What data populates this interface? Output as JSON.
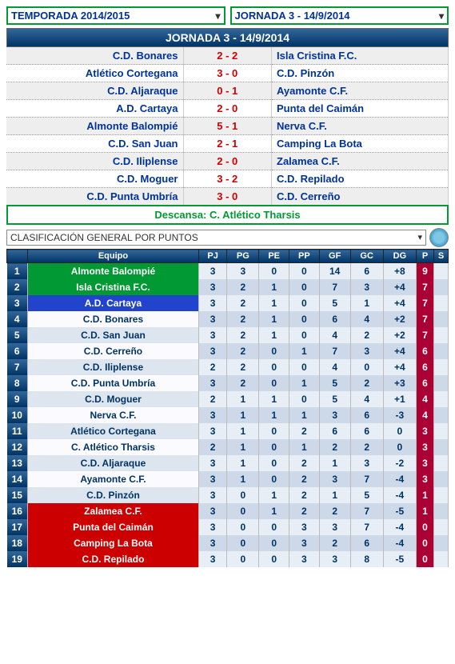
{
  "top": {
    "season_label": "TEMPORADA 2014/2015",
    "round_label": "JORNADA 3 - 14/9/2014"
  },
  "header_title": "JORNADA 3 - 14/9/2014",
  "matches": [
    {
      "home": "C.D. Bonares",
      "score": "2 - 2",
      "away": "Isla Cristina F.C."
    },
    {
      "home": "Atlético Cortegana",
      "score": "3 - 0",
      "away": "C.D. Pinzón"
    },
    {
      "home": "C.D. Aljaraque",
      "score": "0 - 1",
      "away": "Ayamonte C.F."
    },
    {
      "home": "A.D. Cartaya",
      "score": "2 - 0",
      "away": "Punta del Caimán"
    },
    {
      "home": "Almonte Balompié",
      "score": "5 - 1",
      "away": "Nerva C.F."
    },
    {
      "home": "C.D. San Juan",
      "score": "2 - 1",
      "away": "Camping La Bota"
    },
    {
      "home": "C.D. Iliplense",
      "score": "2 - 0",
      "away": "Zalamea C.F."
    },
    {
      "home": "C.D. Moguer",
      "score": "3 - 2",
      "away": "C.D. Repilado"
    },
    {
      "home": "C.D. Punta Umbría",
      "score": "3 - 0",
      "away": "C.D. Cerreño"
    }
  ],
  "rest_label": "Descansa: C. Atlético Tharsis",
  "classif_label": "CLASIFICACIÓN GENERAL POR PUNTOS",
  "cols": {
    "equipo": "Equipo",
    "pj": "PJ",
    "pg": "PG",
    "pe": "PE",
    "pp": "PP",
    "gf": "GF",
    "gc": "GC",
    "dg": "DG",
    "p": "P",
    "s": "S"
  },
  "rows": [
    {
      "pos": 1,
      "team": "Almonte Balompié",
      "pj": 3,
      "pg": 3,
      "pe": 0,
      "pp": 0,
      "gf": 14,
      "gc": 6,
      "dg": "+8",
      "p": 9,
      "color": "009933"
    },
    {
      "pos": 2,
      "team": "Isla Cristina F.C.",
      "pj": 3,
      "pg": 2,
      "pe": 1,
      "pp": 0,
      "gf": 7,
      "gc": 3,
      "dg": "+4",
      "p": 7,
      "color": "009933"
    },
    {
      "pos": 3,
      "team": "A.D. Cartaya",
      "pj": 3,
      "pg": 2,
      "pe": 1,
      "pp": 0,
      "gf": 5,
      "gc": 1,
      "dg": "+4",
      "p": 7,
      "color": "2244cc"
    },
    {
      "pos": 4,
      "team": "C.D. Bonares",
      "pj": 3,
      "pg": 2,
      "pe": 1,
      "pp": 0,
      "gf": 6,
      "gc": 4,
      "dg": "+2",
      "p": 7,
      "color": "fbfbff"
    },
    {
      "pos": 5,
      "team": "C.D. San Juan",
      "pj": 3,
      "pg": 2,
      "pe": 1,
      "pp": 0,
      "gf": 4,
      "gc": 2,
      "dg": "+2",
      "p": 7,
      "color": "dde6ee"
    },
    {
      "pos": 6,
      "team": "C.D. Cerreño",
      "pj": 3,
      "pg": 2,
      "pe": 0,
      "pp": 1,
      "gf": 7,
      "gc": 3,
      "dg": "+4",
      "p": 6,
      "color": "fbfbff"
    },
    {
      "pos": 7,
      "team": "C.D. Iliplense",
      "pj": 2,
      "pg": 2,
      "pe": 0,
      "pp": 0,
      "gf": 4,
      "gc": 0,
      "dg": "+4",
      "p": 6,
      "color": "dde6ee"
    },
    {
      "pos": 8,
      "team": "C.D. Punta Umbría",
      "pj": 3,
      "pg": 2,
      "pe": 0,
      "pp": 1,
      "gf": 5,
      "gc": 2,
      "dg": "+3",
      "p": 6,
      "color": "fbfbff"
    },
    {
      "pos": 9,
      "team": "C.D. Moguer",
      "pj": 2,
      "pg": 1,
      "pe": 1,
      "pp": 0,
      "gf": 5,
      "gc": 4,
      "dg": "+1",
      "p": 4,
      "color": "dde6ee"
    },
    {
      "pos": 10,
      "team": "Nerva C.F.",
      "pj": 3,
      "pg": 1,
      "pe": 1,
      "pp": 1,
      "gf": 3,
      "gc": 6,
      "dg": "-3",
      "p": 4,
      "color": "fbfbff"
    },
    {
      "pos": 11,
      "team": "Atlético Cortegana",
      "pj": 3,
      "pg": 1,
      "pe": 0,
      "pp": 2,
      "gf": 6,
      "gc": 6,
      "dg": "0",
      "p": 3,
      "color": "dde6ee"
    },
    {
      "pos": 12,
      "team": "C. Atlético Tharsis",
      "pj": 2,
      "pg": 1,
      "pe": 0,
      "pp": 1,
      "gf": 2,
      "gc": 2,
      "dg": "0",
      "p": 3,
      "color": "fbfbff"
    },
    {
      "pos": 13,
      "team": "C.D. Aljaraque",
      "pj": 3,
      "pg": 1,
      "pe": 0,
      "pp": 2,
      "gf": 1,
      "gc": 3,
      "dg": "-2",
      "p": 3,
      "color": "dde6ee"
    },
    {
      "pos": 14,
      "team": "Ayamonte C.F.",
      "pj": 3,
      "pg": 1,
      "pe": 0,
      "pp": 2,
      "gf": 3,
      "gc": 7,
      "dg": "-4",
      "p": 3,
      "color": "fbfbff"
    },
    {
      "pos": 15,
      "team": "C.D. Pinzón",
      "pj": 3,
      "pg": 0,
      "pe": 1,
      "pp": 2,
      "gf": 1,
      "gc": 5,
      "dg": "-4",
      "p": 1,
      "color": "dde6ee"
    },
    {
      "pos": 16,
      "team": "Zalamea C.F.",
      "pj": 3,
      "pg": 0,
      "pe": 1,
      "pp": 2,
      "gf": 2,
      "gc": 7,
      "dg": "-5",
      "p": 1,
      "color": "cc0000"
    },
    {
      "pos": 17,
      "team": "Punta del Caimán",
      "pj": 3,
      "pg": 0,
      "pe": 0,
      "pp": 3,
      "gf": 3,
      "gc": 7,
      "dg": "-4",
      "p": 0,
      "color": "cc0000"
    },
    {
      "pos": 18,
      "team": "Camping La Bota",
      "pj": 3,
      "pg": 0,
      "pe": 0,
      "pp": 3,
      "gf": 2,
      "gc": 6,
      "dg": "-4",
      "p": 0,
      "color": "cc0000"
    },
    {
      "pos": 19,
      "team": "C.D. Repilado",
      "pj": 3,
      "pg": 0,
      "pe": 0,
      "pp": 3,
      "gf": 3,
      "gc": 8,
      "dg": "-5",
      "p": 0,
      "color": "cc0000"
    }
  ]
}
